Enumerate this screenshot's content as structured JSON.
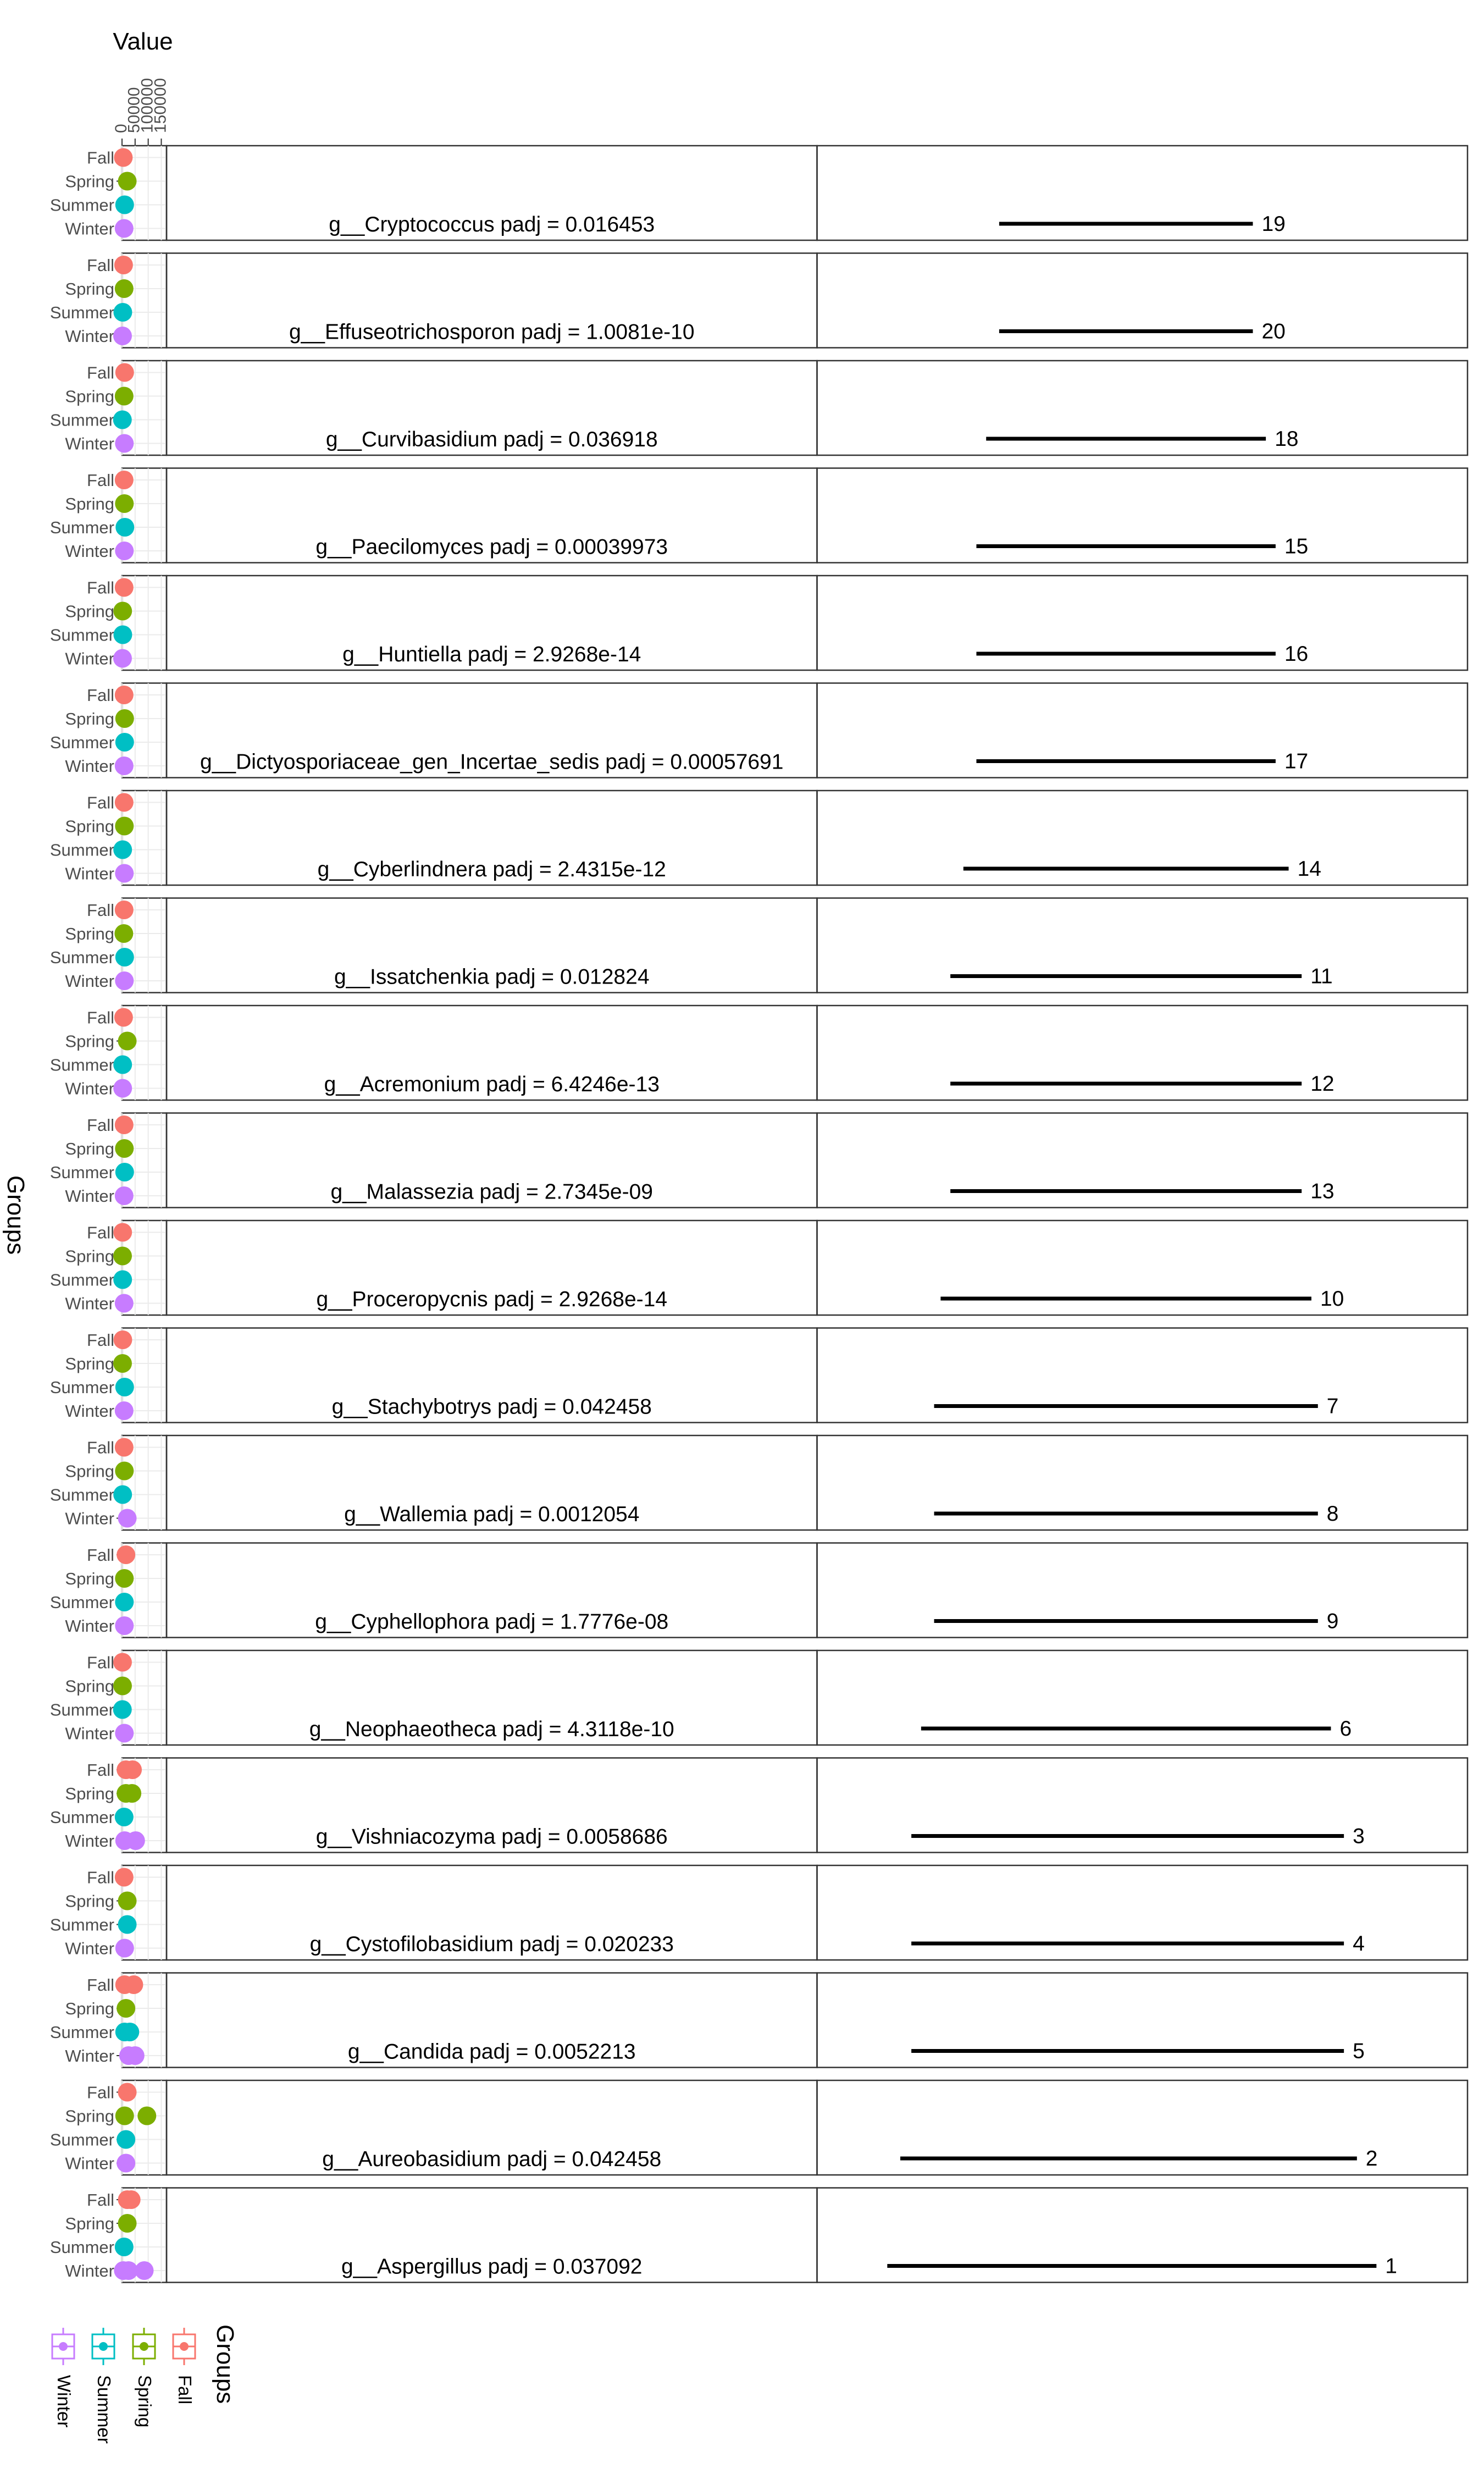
{
  "chart_data": {
    "type": "scatter",
    "value_axis": {
      "title": "Value",
      "ticks": [
        "0",
        "50000",
        "100000",
        "150000"
      ],
      "range": [
        0,
        170000
      ]
    },
    "group_axis_title": "Groups",
    "groups": [
      "Fall",
      "Spring",
      "Summer",
      "Winter"
    ],
    "group_colors": {
      "Fall": "#F8766D",
      "Spring": "#7CAE00",
      "Summer": "#00BFC4",
      "Winter": "#C77CFF"
    },
    "legend": {
      "title": "Groups",
      "entries": [
        "Fall",
        "Spring",
        "Summer",
        "Winter"
      ],
      "position": "bottom-left"
    },
    "panels": [
      {
        "label": "g__Cryptococcus padj = 0.016453",
        "rank": "19",
        "segment": [
          0.28,
          0.67
        ],
        "points": {
          "Fall": [
            5000
          ],
          "Spring": [
            20000
          ],
          "Summer": [
            10000
          ],
          "Winter": [
            8000
          ]
        }
      },
      {
        "label": "g__Effuseotrichosporon padj = 1.0081e-10",
        "rank": "20",
        "segment": [
          0.28,
          0.67
        ],
        "points": {
          "Fall": [
            6000
          ],
          "Spring": [
            8000
          ],
          "Summer": [
            3000
          ],
          "Winter": [
            2000
          ]
        }
      },
      {
        "label": "g__Curvibasidium padj = 0.036918",
        "rank": "18",
        "segment": [
          0.26,
          0.69
        ],
        "points": {
          "Fall": [
            10000
          ],
          "Spring": [
            8000
          ],
          "Summer": [
            1500
          ],
          "Winter": [
            9000
          ]
        }
      },
      {
        "label": "g__Paecilomyces padj = 0.00039973",
        "rank": "15",
        "segment": [
          0.245,
          0.705
        ],
        "points": {
          "Fall": [
            8000
          ],
          "Spring": [
            9000
          ],
          "Summer": [
            11000
          ],
          "Winter": [
            9000
          ]
        }
      },
      {
        "label": "g__Huntiella padj = 2.9268e-14",
        "rank": "16",
        "segment": [
          0.245,
          0.705
        ],
        "points": {
          "Fall": [
            8000
          ],
          "Spring": [
            2500
          ],
          "Summer": [
            3000
          ],
          "Winter": [
            2000
          ]
        }
      },
      {
        "label": "g__Dictyosporiaceae_gen_Incertae_sedis padj = 0.00057691",
        "rank": "17",
        "segment": [
          0.245,
          0.705
        ],
        "points": {
          "Fall": [
            8000
          ],
          "Spring": [
            10000
          ],
          "Summer": [
            10000
          ],
          "Winter": [
            8000
          ]
        }
      },
      {
        "label": "g__Cyberlindnera padj = 2.4315e-12",
        "rank": "14",
        "segment": [
          0.225,
          0.725
        ],
        "points": {
          "Fall": [
            8000
          ],
          "Spring": [
            9000
          ],
          "Summer": [
            2500
          ],
          "Winter": [
            9000
          ]
        }
      },
      {
        "label": "g__Issatchenkia padj = 0.012824",
        "rank": "11",
        "segment": [
          0.205,
          0.745
        ],
        "points": {
          "Fall": [
            8000
          ],
          "Spring": [
            7000
          ],
          "Summer": [
            10000
          ],
          "Winter": [
            9000
          ]
        }
      },
      {
        "label": "g__Acremonium padj = 6.4246e-13",
        "rank": "12",
        "segment": [
          0.205,
          0.745
        ],
        "points": {
          "Fall": [
            6000
          ],
          "Spring": [
            20000
          ],
          "Summer": [
            2500
          ],
          "Winter": [
            2500
          ]
        }
      },
      {
        "label": "g__Malassezia padj = 2.7345e-09",
        "rank": "13",
        "segment": [
          0.205,
          0.745
        ],
        "points": {
          "Fall": [
            8000
          ],
          "Spring": [
            9000
          ],
          "Summer": [
            10000
          ],
          "Winter": [
            8000
          ]
        }
      },
      {
        "label": "g__Proceropycnis padj = 2.9268e-14",
        "rank": "10",
        "segment": [
          0.19,
          0.76
        ],
        "points": {
          "Fall": [
            2500
          ],
          "Spring": [
            2000
          ],
          "Summer": [
            2500
          ],
          "Winter": [
            8000
          ]
        }
      },
      {
        "label": "g__Stachybotrys padj = 0.042458",
        "rank": "7",
        "segment": [
          0.18,
          0.77
        ],
        "points": {
          "Fall": [
            3000
          ],
          "Spring": [
            2000
          ],
          "Summer": [
            10000
          ],
          "Winter": [
            8000
          ]
        }
      },
      {
        "label": "g__Wallemia padj = 0.0012054",
        "rank": "8",
        "segment": [
          0.18,
          0.77
        ],
        "points": {
          "Fall": [
            8000
          ],
          "Spring": [
            9000
          ],
          "Summer": [
            2500
          ],
          "Winter": [
            20000
          ]
        }
      },
      {
        "label": "g__Cyphellophora padj = 1.7776e-08",
        "rank": "9",
        "segment": [
          0.18,
          0.77
        ],
        "points": {
          "Fall": [
            15000
          ],
          "Spring": [
            9000
          ],
          "Summer": [
            9000
          ],
          "Winter": [
            9000
          ]
        }
      },
      {
        "label": "g__Neophaeotheca padj = 4.3118e-10",
        "rank": "6",
        "segment": [
          0.16,
          0.79
        ],
        "points": {
          "Fall": [
            2000
          ],
          "Spring": [
            2000
          ],
          "Summer": [
            1500
          ],
          "Winter": [
            9000
          ]
        }
      },
      {
        "label": "g__Vishniacozyma padj = 0.0058686",
        "rank": "3",
        "segment": [
          0.145,
          0.81
        ],
        "points": {
          "Fall": [
            15000,
            40000
          ],
          "Spring": [
            15000,
            38000
          ],
          "Summer": [
            8000
          ],
          "Winter": [
            10000,
            52000
          ]
        }
      },
      {
        "label": "g__Cystofilobasidium padj = 0.020233",
        "rank": "4",
        "segment": [
          0.145,
          0.81
        ],
        "points": {
          "Fall": [
            8000
          ],
          "Spring": [
            20000
          ],
          "Summer": [
            20000
          ],
          "Winter": [
            10000
          ]
        }
      },
      {
        "label": "g__Candida padj = 0.0052213",
        "rank": "5",
        "segment": [
          0.145,
          0.81
        ],
        "points": {
          "Fall": [
            10000,
            45000
          ],
          "Spring": [
            15000
          ],
          "Summer": [
            10000,
            30000
          ],
          "Winter": [
            25000,
            50000
          ]
        }
      },
      {
        "label": "g__Aureobasidium padj = 0.042458",
        "rank": "2",
        "segment": [
          0.128,
          0.83
        ],
        "points": {
          "Fall": [
            20000
          ],
          "Spring": [
            10000,
            95000
          ],
          "Summer": [
            15000
          ],
          "Winter": [
            15000
          ]
        }
      },
      {
        "label": "g__Aspergillus padj = 0.037092",
        "rank": "1",
        "segment": [
          0.108,
          0.86
        ],
        "points": {
          "Fall": [
            20000,
            35000
          ],
          "Spring": [
            20000
          ],
          "Summer": [
            8000
          ],
          "Winter": [
            5000,
            25000,
            85000
          ]
        }
      }
    ]
  }
}
